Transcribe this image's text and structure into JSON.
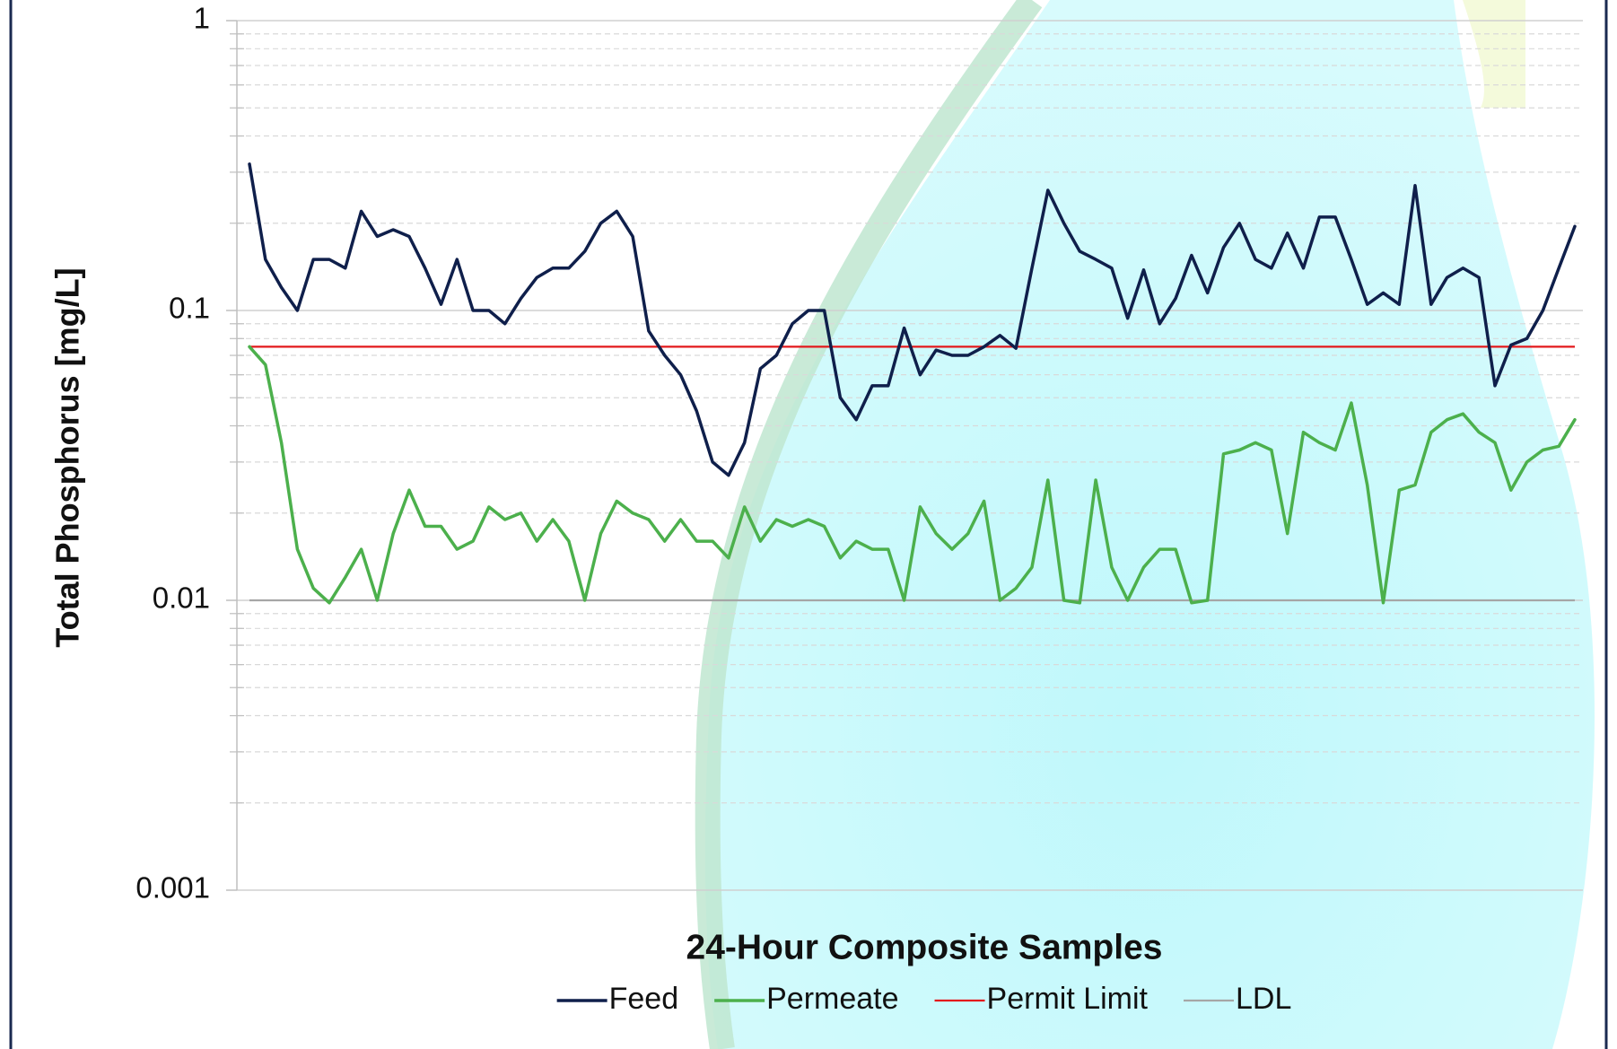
{
  "chart_data": {
    "type": "line",
    "y_label": "Total Phosphorus [mg/L]",
    "x_label": "24-Hour Composite Samples",
    "categories": [
      null,
      null,
      null,
      null,
      null,
      null,
      null,
      null,
      null,
      null,
      null,
      null,
      null,
      null,
      null,
      null,
      null,
      null,
      null,
      null,
      null,
      null,
      null,
      null,
      null,
      null,
      null,
      null,
      null,
      null,
      null,
      null,
      null,
      null,
      null,
      null,
      null,
      null,
      null,
      null,
      null,
      null,
      null,
      null,
      null,
      null,
      null,
      null,
      null,
      null,
      null,
      null,
      null,
      null,
      null,
      null,
      null,
      null,
      null,
      null,
      null,
      null,
      null,
      null,
      null,
      null,
      null,
      null,
      null,
      null,
      null,
      null,
      null,
      null,
      null,
      null,
      null,
      null,
      null,
      null,
      null,
      null,
      null,
      null
    ],
    "series": [
      {
        "name": "Feed",
        "color": "#0f1f4b",
        "values": [
          0.32,
          0.15,
          0.12,
          0.1,
          0.15,
          0.15,
          0.14,
          0.22,
          0.18,
          0.19,
          0.18,
          0.14,
          0.105,
          0.15,
          0.1,
          0.1,
          0.09,
          0.11,
          0.13,
          0.14,
          0.14,
          0.16,
          0.2,
          0.22,
          0.18,
          0.085,
          0.07,
          0.06,
          0.045,
          0.03,
          0.027,
          0.035,
          0.063,
          0.07,
          0.09,
          0.1,
          0.1,
          0.05,
          0.042,
          0.055,
          0.055,
          0.087,
          0.06,
          0.073,
          0.07,
          0.07,
          0.075,
          0.082,
          0.074,
          0.14,
          0.26,
          0.2,
          0.16,
          0.15,
          0.14,
          0.094,
          0.138,
          0.09,
          0.11,
          0.155,
          0.115,
          0.165,
          0.2,
          0.15,
          0.14,
          0.185,
          0.14,
          0.21,
          0.21,
          0.15,
          0.105,
          0.115,
          0.105,
          0.27,
          0.105,
          0.13,
          0.14,
          0.13,
          0.055,
          0.076,
          0.08,
          0.1,
          0.14,
          0.195
        ]
      },
      {
        "name": "Permeate",
        "color": "#4cb04c",
        "values": [
          0.075,
          0.065,
          0.035,
          0.015,
          0.011,
          0.0098,
          0.012,
          0.015,
          0.01,
          0.017,
          0.024,
          0.018,
          0.018,
          0.015,
          0.016,
          0.021,
          0.019,
          0.02,
          0.016,
          0.019,
          0.016,
          0.01,
          0.017,
          0.022,
          0.02,
          0.019,
          0.016,
          0.019,
          0.016,
          0.016,
          0.014,
          0.021,
          0.016,
          0.019,
          0.018,
          0.019,
          0.018,
          0.014,
          0.016,
          0.015,
          0.015,
          0.01,
          0.021,
          0.017,
          0.015,
          0.017,
          0.022,
          0.01,
          0.011,
          0.013,
          0.026,
          0.01,
          0.0098,
          0.026,
          0.013,
          0.01,
          0.013,
          0.015,
          0.015,
          0.0098,
          0.01,
          0.032,
          0.033,
          0.035,
          0.033,
          0.017,
          0.038,
          0.035,
          0.033,
          0.048,
          0.025,
          0.0098,
          0.024,
          0.025,
          0.038,
          0.042,
          0.044,
          0.038,
          0.035,
          0.024,
          0.03,
          0.033,
          0.034,
          0.042
        ]
      }
    ],
    "reference_lines": [
      {
        "name": "Permit Limit",
        "color": "#e3191c",
        "value": 0.075
      },
      {
        "name": "LDL",
        "color": "#a6a6a6",
        "value": 0.01
      }
    ],
    "y_log": true,
    "ylim": [
      0.001,
      1
    ],
    "yticks": [
      1,
      0.1,
      0.01,
      0.001
    ],
    "minor_yticks": [
      0.002,
      0.003,
      0.004,
      0.005,
      0.006,
      0.007,
      0.008,
      0.009,
      0.02,
      0.03,
      0.04,
      0.05,
      0.06,
      0.07,
      0.08,
      0.09,
      0.2,
      0.3,
      0.4,
      0.5,
      0.6,
      0.7,
      0.8,
      0.9
    ],
    "grid": true,
    "legend": "bottom"
  }
}
